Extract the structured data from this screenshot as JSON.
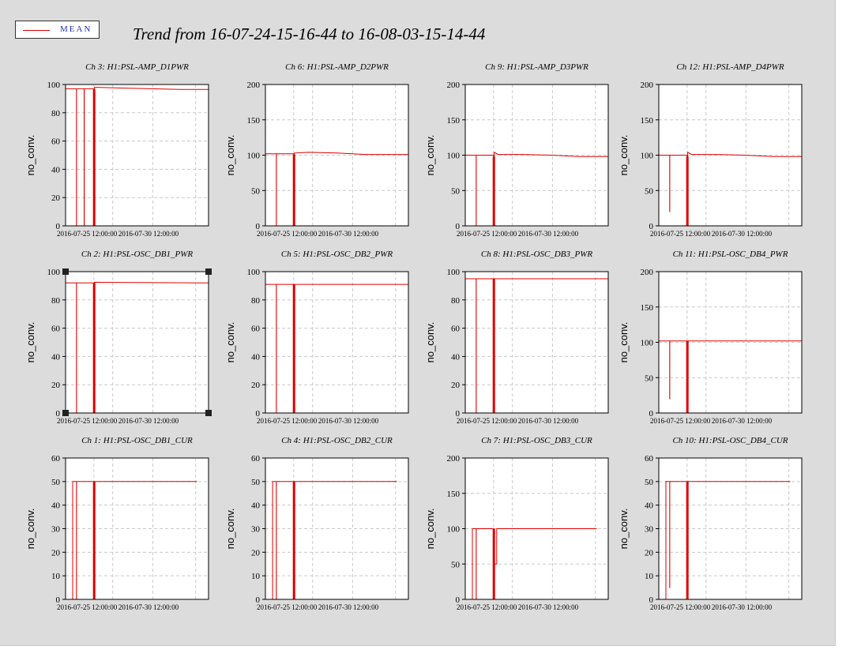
{
  "header": {
    "title": "Trend from 16-07-24-15-16-44 to 16-08-03-15-14-44",
    "legend_label": "MEAN",
    "line_color": "#e00000"
  },
  "chart_data": [
    {
      "type": "line",
      "title": "Ch 3: H1:PSL-AMP_D1PWR",
      "ylabel": "no_conv.",
      "ylim": [
        0,
        100
      ],
      "yticks": [
        0,
        20,
        40,
        60,
        80,
        100
      ],
      "xticklabels": [
        "2016-07-25 12:00:00",
        "2016-07-30 12:00:00"
      ],
      "grid": true,
      "series": [
        {
          "name": "MEAN",
          "x": [
            0,
            0.76,
            0.76,
            0.77,
            0.77,
            1.3,
            1.3,
            1.31,
            1.31,
            1.98,
            1.98,
            2.02,
            2.02,
            2.2,
            4,
            6,
            8,
            10
          ],
          "y": [
            97,
            97,
            0,
            0,
            97,
            97,
            0,
            0,
            97,
            97,
            0,
            0,
            98,
            98,
            97.5,
            97,
            96.5,
            96.5
          ]
        }
      ]
    },
    {
      "type": "line",
      "title": "Ch 6: H1:PSL-AMP_D2PWR",
      "ylabel": "no_conv.",
      "ylim": [
        0,
        200
      ],
      "yticks": [
        0,
        50,
        100,
        150,
        200
      ],
      "xticklabels": [
        "2016-07-25 12:00:00",
        "2016-07-30 12:00:00"
      ],
      "grid": true,
      "series": [
        {
          "name": "MEAN",
          "x": [
            0,
            0.76,
            0.76,
            0.77,
            0.77,
            1.98,
            1.98,
            2.02,
            2.02,
            3,
            5,
            7,
            10
          ],
          "y": [
            102,
            102,
            0,
            0,
            102,
            102,
            0,
            0,
            103,
            104,
            103,
            101,
            101
          ]
        }
      ]
    },
    {
      "type": "line",
      "title": "Ch 9: H1:PSL-AMP_D3PWR",
      "ylabel": "no_conv.",
      "ylim": [
        0,
        200
      ],
      "yticks": [
        0,
        50,
        100,
        150,
        200
      ],
      "xticklabels": [
        "2016-07-25 12:00:00",
        "2016-07-30 12:00:00"
      ],
      "grid": true,
      "series": [
        {
          "name": "MEAN",
          "x": [
            0,
            0.76,
            0.76,
            0.77,
            0.77,
            1.98,
            1.98,
            2.02,
            2.02,
            2.3,
            4,
            6,
            8,
            10
          ],
          "y": [
            100,
            100,
            0,
            0,
            100,
            100,
            0,
            0,
            104,
            101,
            101,
            100,
            98,
            98
          ]
        }
      ]
    },
    {
      "type": "line",
      "title": "Ch 12: H1:PSL-AMP_D4PWR",
      "ylabel": "no_conv.",
      "ylim": [
        0,
        200
      ],
      "yticks": [
        0,
        50,
        100,
        150,
        200
      ],
      "xticklabels": [
        "2016-07-25 12:00:00",
        "2016-07-30 12:00:00"
      ],
      "grid": true,
      "series": [
        {
          "name": "MEAN",
          "x": [
            0,
            0.76,
            0.76,
            0.77,
            0.77,
            1.98,
            1.98,
            2.02,
            2.02,
            2.3,
            4,
            6,
            8,
            10
          ],
          "y": [
            100,
            100,
            20,
            20,
            100,
            100,
            0,
            0,
            104,
            101,
            101,
            100,
            98,
            98
          ]
        }
      ]
    },
    {
      "type": "line",
      "title": "Ch 2: H1:PSL-OSC_DB1_PWR",
      "ylabel": "no_conv.",
      "ylim": [
        0,
        100
      ],
      "yticks": [
        0,
        20,
        40,
        60,
        80,
        100
      ],
      "xticklabels": [
        "2016-07-25 12:00:00",
        "2016-07-30 12:00:00"
      ],
      "grid": true,
      "series": [
        {
          "name": "MEAN",
          "x": [
            0,
            0.76,
            0.76,
            0.77,
            0.77,
            1.98,
            1.98,
            2.02,
            2.02,
            10
          ],
          "y": [
            92,
            92,
            0,
            0,
            92,
            92,
            0,
            0,
            92.5,
            92
          ]
        }
      ]
    },
    {
      "type": "line",
      "title": "Ch 5: H1:PSL-OSC_DB2_PWR",
      "ylabel": "no_conv.",
      "ylim": [
        0,
        100
      ],
      "yticks": [
        0,
        20,
        40,
        60,
        80,
        100
      ],
      "xticklabels": [
        "2016-07-25 12:00:00",
        "2016-07-30 12:00:00"
      ],
      "grid": true,
      "series": [
        {
          "name": "MEAN",
          "x": [
            0,
            0.76,
            0.76,
            0.77,
            0.77,
            1.98,
            1.98,
            2.02,
            2.02,
            10
          ],
          "y": [
            91,
            91,
            0,
            0,
            91,
            91,
            0,
            0,
            91,
            91
          ]
        }
      ]
    },
    {
      "type": "line",
      "title": "Ch 8: H1:PSL-OSC_DB3_PWR",
      "ylabel": "no_conv.",
      "ylim": [
        0,
        100
      ],
      "yticks": [
        0,
        20,
        40,
        60,
        80,
        100
      ],
      "xticklabels": [
        "2016-07-25 12:00:00",
        "2016-07-30 12:00:00"
      ],
      "grid": true,
      "series": [
        {
          "name": "MEAN",
          "x": [
            0,
            0.76,
            0.76,
            0.77,
            0.77,
            1.98,
            1.98,
            2.02,
            2.02,
            10
          ],
          "y": [
            95,
            95,
            0,
            0,
            95,
            95,
            0,
            0,
            95,
            95
          ]
        }
      ]
    },
    {
      "type": "line",
      "title": "Ch 11: H1:PSL-OSC_DB4_PWR",
      "ylabel": "no_conv.",
      "ylim": [
        0,
        200
      ],
      "yticks": [
        0,
        50,
        100,
        150,
        200
      ],
      "xticklabels": [
        "2016-07-25 12:00:00",
        "2016-07-30 12:00:00"
      ],
      "grid": true,
      "series": [
        {
          "name": "MEAN",
          "x": [
            0,
            0.76,
            0.76,
            0.77,
            0.77,
            1.98,
            1.98,
            2.02,
            2.02,
            10
          ],
          "y": [
            102,
            102,
            20,
            20,
            102,
            102,
            0,
            0,
            102,
            102
          ]
        }
      ]
    },
    {
      "type": "line",
      "title": "Ch 1: H1:PSL-OSC_DB1_CUR",
      "ylabel": "no_conv.",
      "ylim": [
        0,
        60
      ],
      "yticks": [
        0,
        10,
        20,
        30,
        40,
        50,
        60
      ],
      "xticklabels": [
        "2016-07-25 12:00:00",
        "2016-07-30 12:00:00"
      ],
      "grid": true,
      "series": [
        {
          "name": "MEAN",
          "x": [
            0.5,
            0.5,
            0.76,
            0.76,
            0.77,
            0.77,
            1.98,
            1.98,
            2.02,
            2.02,
            9.2
          ],
          "y": [
            0,
            50,
            50,
            0,
            0,
            50,
            50,
            0,
            0,
            50,
            50
          ]
        }
      ]
    },
    {
      "type": "line",
      "title": "Ch 4: H1:PSL-OSC_DB2_CUR",
      "ylabel": "no_conv.",
      "ylim": [
        0,
        60
      ],
      "yticks": [
        0,
        10,
        20,
        30,
        40,
        50,
        60
      ],
      "xticklabels": [
        "2016-07-25 12:00:00",
        "2016-07-30 12:00:00"
      ],
      "grid": true,
      "series": [
        {
          "name": "MEAN",
          "x": [
            0.5,
            0.5,
            0.76,
            0.76,
            0.77,
            0.77,
            1.98,
            1.98,
            2.02,
            2.02,
            9.2
          ],
          "y": [
            0,
            50,
            50,
            0,
            0,
            50,
            50,
            0,
            0,
            50,
            50
          ]
        }
      ]
    },
    {
      "type": "line",
      "title": "Ch 7: H1:PSL-OSC_DB3_CUR",
      "ylabel": "no_conv.",
      "ylim": [
        0,
        200
      ],
      "yticks": [
        0,
        50,
        100,
        150,
        200
      ],
      "xticklabels": [
        "2016-07-25 12:00:00",
        "2016-07-30 12:00:00"
      ],
      "grid": true,
      "series": [
        {
          "name": "MEAN",
          "x": [
            0.5,
            0.5,
            0.76,
            0.76,
            0.77,
            0.77,
            1.98,
            1.98,
            2.02,
            2.02,
            2.2,
            2.2,
            9.2
          ],
          "y": [
            0,
            100,
            100,
            0,
            0,
            100,
            100,
            0,
            0,
            50,
            50,
            100,
            100
          ]
        }
      ]
    },
    {
      "type": "line",
      "title": "Ch 10: H1:PSL-OSC_DB4_CUR",
      "ylabel": "no_conv.",
      "ylim": [
        0,
        60
      ],
      "yticks": [
        0,
        10,
        20,
        30,
        40,
        50,
        60
      ],
      "xticklabels": [
        "2016-07-25 12:00:00",
        "2016-07-30 12:00:00"
      ],
      "grid": true,
      "series": [
        {
          "name": "MEAN",
          "x": [
            0.5,
            0.5,
            0.76,
            0.76,
            0.77,
            0.77,
            1.98,
            1.98,
            2.02,
            2.02,
            9.2
          ],
          "y": [
            0,
            50,
            50,
            5,
            5,
            50,
            50,
            0,
            0,
            50,
            50
          ]
        }
      ]
    }
  ]
}
